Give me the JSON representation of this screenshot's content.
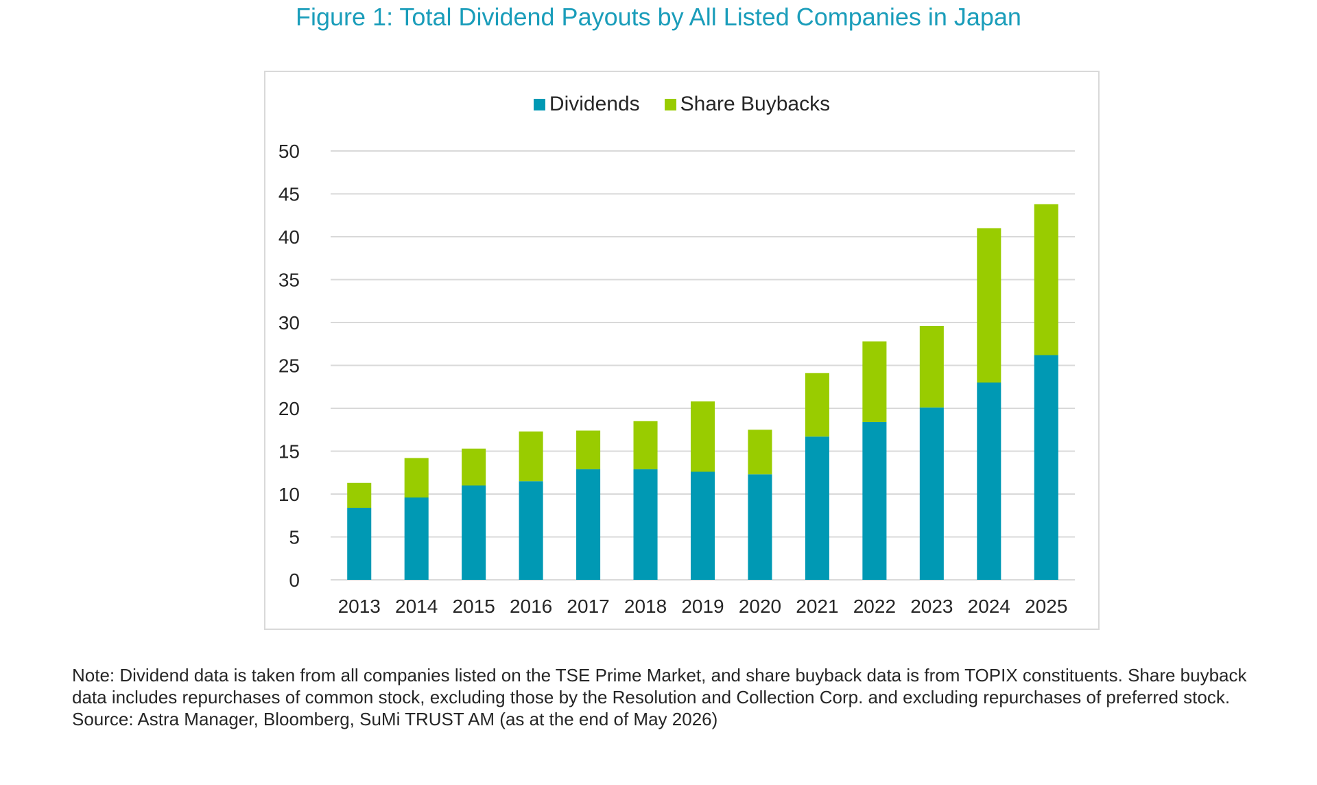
{
  "title": "Figure 1: Total Dividend Payouts by All Listed Companies in Japan",
  "note": "Note:  Dividend data is taken from all companies listed on the TSE Prime Market, and share buyback data is from TOPIX constituents. Share buyback data includes repurchases of common stock, excluding those by the Resolution and Collection Corp. and excluding repurchases of preferred stock.",
  "source": "Source: Astra Manager, Bloomberg, SuMi TRUST AM (as at the end of May 2026)",
  "colors": {
    "dividends": "#0099b4",
    "buybacks": "#99cc00",
    "grid": "#d9d9d9",
    "title": "#1a9dba"
  },
  "chart_data": {
    "type": "bar",
    "stacked": true,
    "categories": [
      "2013",
      "2014",
      "2015",
      "2016",
      "2017",
      "2018",
      "2019",
      "2020",
      "2021",
      "2022",
      "2023",
      "2024",
      "2025"
    ],
    "series": [
      {
        "name": "Dividends",
        "values": [
          8.4,
          9.6,
          11.0,
          11.5,
          12.9,
          12.9,
          12.6,
          12.3,
          16.7,
          18.4,
          20.1,
          23.0,
          26.2
        ]
      },
      {
        "name": "Share Buybacks",
        "values": [
          2.9,
          4.6,
          4.3,
          5.8,
          4.5,
          5.6,
          8.2,
          5.2,
          7.4,
          9.4,
          9.5,
          18.0,
          17.6
        ]
      }
    ],
    "ylim": [
      0,
      50
    ],
    "yticks": [
      0,
      5,
      10,
      15,
      20,
      25,
      30,
      35,
      40,
      45,
      50
    ],
    "grid": true,
    "legend_position": "top-center",
    "title": "",
    "xlabel": "",
    "ylabel": ""
  }
}
